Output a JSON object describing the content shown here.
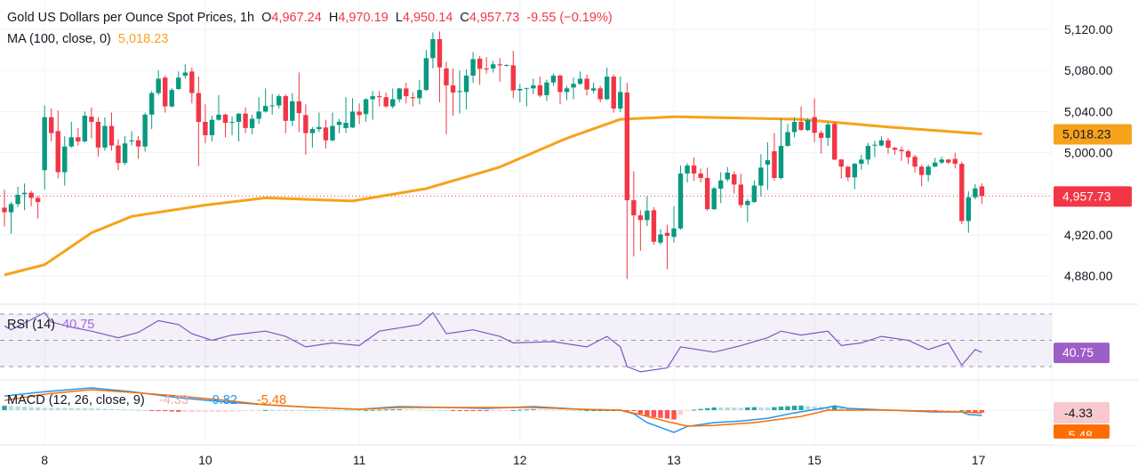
{
  "header": {
    "title": "Gold US Dollars per Ounce Spot Prices, 1h",
    "open_label": "O",
    "open": "4,967.24",
    "high_label": "H",
    "high": "4,970.19",
    "low_label": "L",
    "low": "4,950.14",
    "close_label": "C",
    "close": "4,957.73",
    "change": "-9.55 (−0.19%)"
  },
  "ma_legend": {
    "label": "MA (100, close, 0)",
    "value": "5,018.23"
  },
  "rsi_legend": {
    "label": "RSI (14)",
    "value": "40.75"
  },
  "macd_legend": {
    "label": "MACD (12, 26, close, 9)",
    "histogram": "-4.33",
    "macd": "-9.82",
    "signal": "-5.48"
  },
  "colors": {
    "up": "#089981",
    "down": "#f23645",
    "ma": "#f7a21b",
    "rsi": "#7e57c2",
    "macd": "#2196f3",
    "signal": "#ff6d00"
  },
  "chart_data": {
    "type": "candlestick",
    "title": "Gold US Dollars per Ounce Spot Prices, 1h",
    "price_axis": {
      "range": [
        4860,
        5130
      ],
      "ticks": [
        {
          "value": 5120,
          "label": "5,120.00"
        },
        {
          "value": 5080,
          "label": "5,080.00"
        },
        {
          "value": 5040,
          "label": "5,040.00"
        },
        {
          "value": 5000,
          "label": "5,000.00"
        },
        {
          "value": 4920,
          "label": "4,920.00"
        },
        {
          "value": 4880,
          "label": "4,880.00"
        }
      ]
    },
    "price_labels": {
      "ma": "5,018.23",
      "last": "4,957.73"
    },
    "last_price": 4957.73,
    "ma_value": 5018.23,
    "time_axis": [
      {
        "label": "8",
        "bar": 6
      },
      {
        "label": "10",
        "bar": 30
      },
      {
        "label": "11",
        "bar": 53
      },
      {
        "label": "12",
        "bar": 77
      },
      {
        "label": "13",
        "bar": 100
      },
      {
        "label": "15",
        "bar": 121
      },
      {
        "label": "17",
        "bar": 145.5
      }
    ],
    "ohlc": [
      [
        4946.5,
        4964,
        4928,
        4942
      ],
      [
        4942,
        4952,
        4921,
        4950
      ],
      [
        4950,
        4967,
        4947,
        4959
      ],
      [
        4959.5,
        4970,
        4944,
        4961
      ],
      [
        4961,
        4963,
        4948,
        4956
      ],
      [
        4956,
        4958,
        4936,
        4952
      ],
      [
        4983,
        5046,
        4964,
        5034.5
      ],
      [
        5034.5,
        5043,
        5011,
        5019
      ],
      [
        5021,
        5041,
        4975,
        4981
      ],
      [
        4981,
        5016,
        4968,
        5006
      ],
      [
        5006,
        5030,
        5005,
        5015
      ],
      [
        5015,
        5024,
        5007,
        5011
      ],
      [
        5011,
        5040,
        5010,
        5036
      ],
      [
        5035,
        5044,
        5014,
        5030
      ],
      [
        5030,
        5034.5,
        4996,
        5005
      ],
      [
        5005,
        5034.5,
        5002,
        5026
      ],
      [
        5026,
        5039,
        5002,
        5007
      ],
      [
        5007,
        5013,
        4983,
        4990
      ],
      [
        4990,
        5016,
        4988,
        5009
      ],
      [
        5011,
        5021,
        5007,
        5012
      ],
      [
        5012,
        5016,
        4994,
        5006
      ],
      [
        5006,
        5039,
        5001,
        5037
      ],
      [
        5037,
        5060,
        5023,
        5058
      ],
      [
        5058,
        5080,
        5056,
        5072
      ],
      [
        5073,
        5075,
        5039,
        5045
      ],
      [
        5045,
        5063,
        5044,
        5061
      ],
      [
        5062,
        5079,
        5061,
        5073
      ],
      [
        5075,
        5086,
        5072,
        5078
      ],
      [
        5079,
        5083,
        5048,
        5058
      ],
      [
        5058,
        5074,
        4987,
        5030
      ],
      [
        5030,
        5047,
        5009,
        5017
      ],
      [
        5017,
        5036,
        5011,
        5032
      ],
      [
        5032,
        5056,
        5031,
        5037
      ],
      [
        5037,
        5038,
        5015,
        5029
      ],
      [
        5029.5,
        5035,
        5017,
        5030
      ],
      [
        5030,
        5038.5,
        5011,
        5038
      ],
      [
        5038,
        5044,
        5019,
        5024
      ],
      [
        5024,
        5037,
        5018,
        5033
      ],
      [
        5033,
        5054,
        5028,
        5040
      ],
      [
        5040,
        5062.5,
        5039,
        5045.5
      ],
      [
        5045.5,
        5057,
        5037,
        5046
      ],
      [
        5046,
        5057,
        5043,
        5055
      ],
      [
        5055,
        5057,
        5019,
        5031
      ],
      [
        5031,
        5058,
        5026,
        5050
      ],
      [
        5050,
        5078,
        5020,
        5038.5
      ],
      [
        5036.6,
        5047,
        4998,
        5019
      ],
      [
        5019,
        5025,
        5005,
        5023
      ],
      [
        5023,
        5039,
        5020,
        5025
      ],
      [
        5024.5,
        5032,
        5004,
        5012
      ],
      [
        5012,
        5039,
        5011,
        5026
      ],
      [
        5027,
        5033,
        5019,
        5030
      ],
      [
        5024,
        5054,
        5019,
        5029
      ],
      [
        5024.5,
        5053,
        5024,
        5040
      ],
      [
        5040,
        5048,
        5028,
        5036.6
      ],
      [
        5037.5,
        5053,
        5030,
        5052
      ],
      [
        5052,
        5060,
        5032,
        5055
      ],
      [
        5055,
        5060,
        5045,
        5054
      ],
      [
        5054,
        5058.5,
        5044,
        5045
      ],
      [
        5045,
        5062.5,
        5043,
        5052
      ],
      [
        5052,
        5063,
        5049,
        5062.5
      ],
      [
        5062.5,
        5068,
        5048,
        5055
      ],
      [
        5054,
        5059,
        5045,
        5053
      ],
      [
        5053,
        5070.6,
        5047,
        5061
      ],
      [
        5061,
        5100,
        5060,
        5092
      ],
      [
        5092,
        5117,
        5082,
        5110.5
      ],
      [
        5110.5,
        5118,
        5049,
        5083
      ],
      [
        5082,
        5088.5,
        5018,
        5065.5
      ],
      [
        5065.5,
        5082,
        5036,
        5058.5
      ],
      [
        5059,
        5080,
        5038,
        5060
      ],
      [
        5059,
        5081,
        5042,
        5075
      ],
      [
        5075,
        5098,
        5068,
        5091
      ],
      [
        5091.5,
        5094,
        5066,
        5081.6
      ],
      [
        5082,
        5093,
        5077,
        5081
      ],
      [
        5082,
        5089.4,
        5078,
        5086
      ],
      [
        5086,
        5092,
        5069,
        5085
      ],
      [
        5085,
        5086,
        5084,
        5085.3
      ],
      [
        5085,
        5099,
        5053,
        5060.6
      ],
      [
        5060.6,
        5067,
        5049,
        5062
      ],
      [
        5062.6,
        5063,
        5045,
        5063
      ],
      [
        5062.6,
        5072,
        5057,
        5065.5
      ],
      [
        5065.5,
        5074,
        5054,
        5055.6
      ],
      [
        5056,
        5071,
        5050.5,
        5068.3
      ],
      [
        5068.3,
        5077,
        5065,
        5075
      ],
      [
        5075,
        5076,
        5047,
        5059
      ],
      [
        5059,
        5065,
        5051,
        5062.6
      ],
      [
        5063.4,
        5073,
        5052,
        5067
      ],
      [
        5067,
        5079,
        5066,
        5072
      ],
      [
        5072,
        5076,
        5055.6,
        5061.4
      ],
      [
        5060.5,
        5068,
        5057.7,
        5062.6
      ],
      [
        5062.6,
        5065,
        5049,
        5052
      ],
      [
        5052,
        5082.8,
        5051,
        5074
      ],
      [
        5074,
        5076,
        5039,
        5043
      ],
      [
        5043,
        5074,
        5039.5,
        5059
      ],
      [
        5058.5,
        5067.8,
        4877,
        4953.7
      ],
      [
        4953.7,
        4982,
        4899,
        4939
      ],
      [
        4939,
        4944,
        4904.7,
        4934.4
      ],
      [
        4934.4,
        4957.5,
        4928.6,
        4943.6
      ],
      [
        4944,
        4947,
        4910.4,
        4913.3
      ],
      [
        4912.5,
        4925.7,
        4910.4,
        4920.5
      ],
      [
        4922,
        4929.8,
        4886.5,
        4919
      ],
      [
        4918,
        4948,
        4912.5,
        4926.3
      ],
      [
        4926.3,
        4987.5,
        4925,
        4979.7
      ],
      [
        4979.7,
        4989.8,
        4971,
        4987.5
      ],
      [
        4987.5,
        4995.6,
        4972.5,
        4979.7
      ],
      [
        4979.7,
        4984.6,
        4971,
        4975.4
      ],
      [
        4975.4,
        4985.5,
        4943.6,
        4945
      ],
      [
        4945,
        4966.7,
        4944,
        4965.3
      ],
      [
        4965,
        4981,
        4951,
        4973
      ],
      [
        4974,
        4986,
        4972,
        4980.6
      ],
      [
        4979,
        4982,
        4960.4,
        4969
      ],
      [
        4969,
        4979.7,
        4946.5,
        4949
      ],
      [
        4949,
        4955,
        4932.7,
        4953
      ],
      [
        4952,
        4973,
        4951,
        4968
      ],
      [
        4968,
        4998.5,
        4957.5,
        4985.5
      ],
      [
        4988.4,
        5010,
        4963.8,
        4992.7
      ],
      [
        5001.4,
        5019,
        4973,
        4975.4
      ],
      [
        4975.4,
        5033,
        4974,
        5006.6
      ],
      [
        5006.6,
        5028,
        5005.7,
        5020
      ],
      [
        5020,
        5034.6,
        5015,
        5030
      ],
      [
        5030,
        5045,
        5021.6,
        5022
      ],
      [
        5022,
        5033.7,
        5021,
        5031.7
      ],
      [
        5034.6,
        5052.8,
        5010,
        5019.3
      ],
      [
        5019.3,
        5021.6,
        4999,
        5014.4
      ],
      [
        5014.4,
        5030,
        5006.6,
        5027.4
      ],
      [
        5028,
        5030,
        4992.7,
        4993.3
      ],
      [
        4993.3,
        4994,
        4974.8,
        4986.4
      ],
      [
        4986.4,
        4987,
        4972.5,
        4976
      ],
      [
        4976,
        4990,
        4964.4,
        4989.2
      ],
      [
        4989.2,
        4998,
        4983.5,
        4993.3
      ],
      [
        4993.3,
        5009.5,
        4988.4,
        5006.6
      ],
      [
        5007,
        5011.5,
        4995.6,
        5007.7
      ],
      [
        5007,
        5016,
        5006,
        5012
      ],
      [
        5012,
        5014.4,
        4999,
        5004.8
      ],
      [
        5004.8,
        5005.5,
        4998,
        5002.8
      ],
      [
        5002.8,
        5006,
        4992,
        5001.4
      ],
      [
        5001.4,
        5003,
        4989.2,
        4995.6
      ],
      [
        4996,
        4998,
        4980.6,
        4986.4
      ],
      [
        4986.4,
        4988,
        4967.3,
        4978.3
      ],
      [
        4978.3,
        4988.4,
        4972,
        4986.4
      ],
      [
        4986.4,
        4995,
        4986,
        4990.4
      ],
      [
        4990.4,
        4996,
        4989,
        4993.3
      ],
      [
        4993.3,
        4994,
        4989,
        4990.4
      ],
      [
        4993.9,
        4999.9,
        4984.6,
        4989.2
      ],
      [
        4989.2,
        4991.3,
        4930.6,
        4933.5
      ],
      [
        4933.5,
        4962.4,
        4922,
        4956.6
      ],
      [
        4956.6,
        4969.6,
        4954.6,
        4965.3
      ],
      [
        4967.24,
        4970.19,
        4950.14,
        4957.73
      ]
    ],
    "ma_100": [
      [
        0,
        4881
      ],
      [
        6,
        4891
      ],
      [
        13,
        4922
      ],
      [
        19,
        4938
      ],
      [
        30,
        4949
      ],
      [
        39,
        4956
      ],
      [
        52,
        4953
      ],
      [
        63,
        4965
      ],
      [
        74,
        4986
      ],
      [
        84,
        5014
      ],
      [
        92,
        5032.5
      ],
      [
        100,
        5035
      ],
      [
        119,
        5032.5
      ],
      [
        132,
        5025
      ],
      [
        146,
        5018.23
      ]
    ],
    "rsi": {
      "levels": [
        70,
        50,
        30
      ],
      "values": [
        [
          0,
          61
        ],
        [
          1,
          58
        ],
        [
          6,
          71
        ],
        [
          7,
          64
        ],
        [
          10,
          60
        ],
        [
          13,
          57
        ],
        [
          17,
          52
        ],
        [
          20,
          56
        ],
        [
          23,
          65
        ],
        [
          26,
          62
        ],
        [
          28,
          55
        ],
        [
          31,
          50
        ],
        [
          34,
          54
        ],
        [
          39,
          57
        ],
        [
          42,
          53
        ],
        [
          45,
          45
        ],
        [
          49,
          48
        ],
        [
          53,
          46
        ],
        [
          56,
          57
        ],
        [
          62,
          62
        ],
        [
          64,
          71
        ],
        [
          66,
          55
        ],
        [
          70,
          58
        ],
        [
          74,
          53
        ],
        [
          76,
          48
        ],
        [
          82,
          49
        ],
        [
          87,
          45
        ],
        [
          90,
          53
        ],
        [
          92,
          45
        ],
        [
          93,
          30
        ],
        [
          95,
          26
        ],
        [
          99,
          29
        ],
        [
          101,
          45
        ],
        [
          106,
          41
        ],
        [
          110,
          46
        ],
        [
          114,
          52
        ],
        [
          116,
          57
        ],
        [
          119,
          54
        ],
        [
          123,
          57
        ],
        [
          125,
          46
        ],
        [
          128,
          48
        ],
        [
          131,
          53
        ],
        [
          135,
          50
        ],
        [
          138,
          43
        ],
        [
          141,
          48
        ],
        [
          143,
          31
        ],
        [
          145,
          43
        ],
        [
          146,
          40.75
        ]
      ]
    },
    "macd": {
      "macd": [
        [
          0,
          26
        ],
        [
          6,
          34
        ],
        [
          13,
          41
        ],
        [
          19,
          34
        ],
        [
          26,
          23
        ],
        [
          33,
          15
        ],
        [
          39,
          10
        ],
        [
          46,
          5
        ],
        [
          53,
          1.6
        ],
        [
          59,
          6.6
        ],
        [
          66,
          4.9
        ],
        [
          72,
          3.3
        ],
        [
          79,
          6.6
        ],
        [
          86,
          1.6
        ],
        [
          92,
          0
        ],
        [
          94,
          -6.6
        ],
        [
          96,
          -23
        ],
        [
          100,
          -41
        ],
        [
          102,
          -30
        ],
        [
          106,
          -23
        ],
        [
          110,
          -20
        ],
        [
          114,
          -15
        ],
        [
          118,
          -5
        ],
        [
          123,
          5
        ],
        [
          124,
          8
        ],
        [
          126,
          3.3
        ],
        [
          132,
          0
        ],
        [
          139,
          -3.3
        ],
        [
          143,
          -3.3
        ],
        [
          144,
          -8
        ],
        [
          146,
          -9.82
        ]
      ],
      "signal": [
        [
          0,
          18
        ],
        [
          6,
          29.5
        ],
        [
          13,
          37.7
        ],
        [
          19,
          32.8
        ],
        [
          26,
          26
        ],
        [
          33,
          18
        ],
        [
          39,
          9.8
        ],
        [
          46,
          4.9
        ],
        [
          53,
          1.6
        ],
        [
          59,
          4.9
        ],
        [
          66,
          4.9
        ],
        [
          79,
          4.9
        ],
        [
          86,
          1.6
        ],
        [
          92,
          0
        ],
        [
          95,
          -8.2
        ],
        [
          99,
          -21
        ],
        [
          102,
          -29.5
        ],
        [
          106,
          -28
        ],
        [
          112,
          -23
        ],
        [
          119,
          -11.5
        ],
        [
          123,
          0
        ],
        [
          132,
          0
        ],
        [
          143,
          -3.3
        ],
        [
          146,
          -5.48
        ]
      ]
    }
  }
}
